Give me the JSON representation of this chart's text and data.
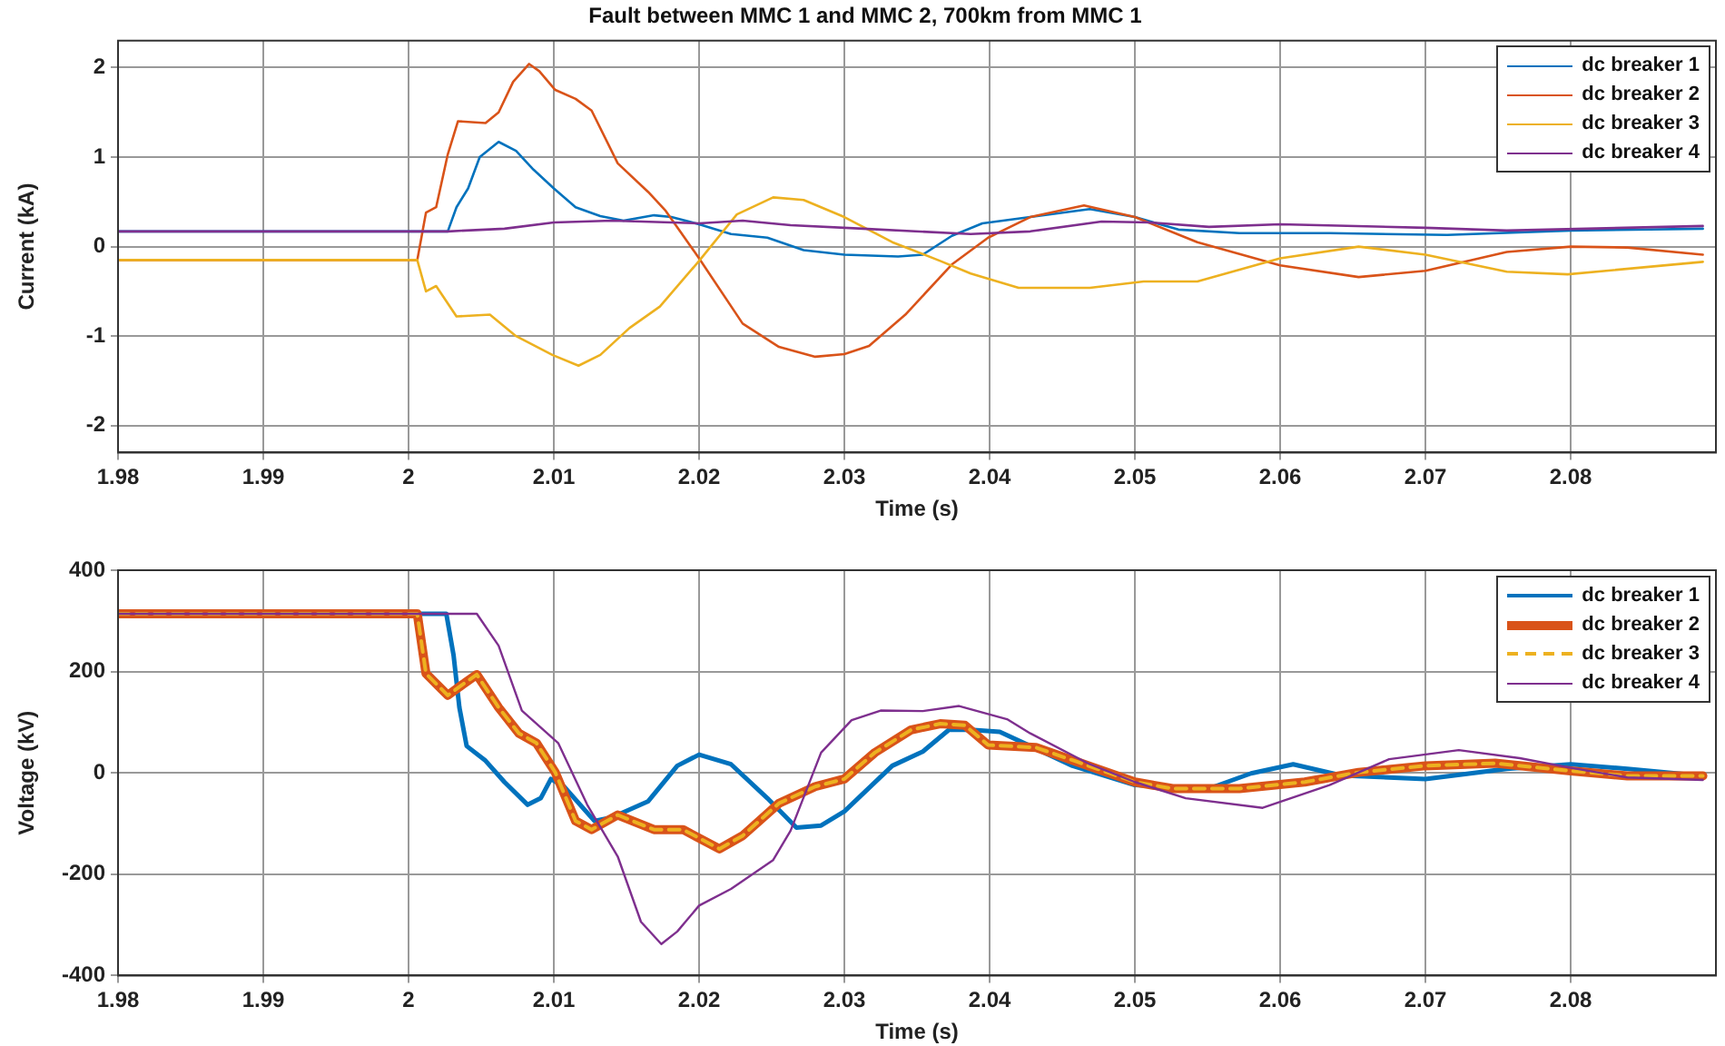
{
  "chart_data": [
    {
      "type": "line",
      "title": "Fault between MMC 1 and MMC 2, 700km from MMC 1",
      "xlabel": "Time (s)",
      "ylabel": "Current (kA)",
      "xlim": [
        1.98,
        2.09
      ],
      "xticks": [
        1.98,
        1.99,
        2,
        2.01,
        2.02,
        2.03,
        2.04,
        2.05,
        2.06,
        2.07,
        2.08
      ],
      "ylim": [
        -2.3,
        2.3
      ],
      "yticks": [
        -2,
        -1,
        0,
        1,
        2
      ],
      "grid": true,
      "legend": "top right",
      "marker": "none",
      "series": [
        {
          "name": "dc breaker 1",
          "color": "#0072bd",
          "x": [
            1.98,
            2.0027,
            2.0033,
            2.0041,
            2.0049,
            2.0062,
            2.0074,
            2.0086,
            2.01,
            2.0115,
            2.0132,
            2.0148,
            2.0169,
            2.0181,
            2.02,
            2.0222,
            2.0247,
            2.0272,
            2.03,
            2.0337,
            2.0354,
            2.0374,
            2.0395,
            2.0428,
            2.0469,
            2.05,
            2.053,
            2.0572,
            2.0634,
            2.0715,
            2.08,
            2.0891
          ],
          "values": [
            0.17,
            0.17,
            0.44,
            0.65,
            1.0,
            1.17,
            1.07,
            0.86,
            0.65,
            0.44,
            0.34,
            0.29,
            0.35,
            0.33,
            0.25,
            0.14,
            0.1,
            -0.04,
            -0.09,
            -0.11,
            -0.09,
            0.12,
            0.26,
            0.33,
            0.42,
            0.33,
            0.19,
            0.15,
            0.15,
            0.13,
            0.18,
            0.2
          ]
        },
        {
          "name": "dc breaker 2",
          "color": "#d95319",
          "x": [
            1.98,
            2.0006,
            2.0012,
            2.0019,
            2.0027,
            2.0034,
            2.0053,
            2.0062,
            2.0072,
            2.0083,
            2.009,
            2.0101,
            2.0115,
            2.0126,
            2.0144,
            2.0165,
            2.0177,
            2.02,
            2.023,
            2.0255,
            2.028,
            2.03,
            2.0317,
            2.0342,
            2.0374,
            2.0399,
            2.0428,
            2.0465,
            2.05,
            2.0543,
            2.06,
            2.0654,
            2.07,
            2.0756,
            2.08,
            2.0839,
            2.0891
          ],
          "values": [
            -0.15,
            -0.15,
            0.38,
            0.44,
            1.03,
            1.4,
            1.38,
            1.5,
            1.84,
            2.04,
            1.96,
            1.75,
            1.65,
            1.52,
            0.93,
            0.61,
            0.4,
            -0.13,
            -0.86,
            -1.12,
            -1.23,
            -1.2,
            -1.11,
            -0.76,
            -0.2,
            0.1,
            0.33,
            0.46,
            0.33,
            0.05,
            -0.21,
            -0.34,
            -0.27,
            -0.06,
            0,
            -0.01,
            -0.09
          ]
        },
        {
          "name": "dc breaker 3",
          "color": "#edb120",
          "x": [
            1.98,
            2.0006,
            2.0012,
            2.0019,
            2.0033,
            2.0056,
            2.0074,
            2.0099,
            2.0117,
            2.0132,
            2.0152,
            2.0173,
            2.02,
            2.0226,
            2.0251,
            2.0272,
            2.03,
            2.0333,
            2.0366,
            2.0387,
            2.042,
            2.0469,
            2.0506,
            2.0543,
            2.06,
            2.0654,
            2.07,
            2.0756,
            2.0798,
            2.0891
          ],
          "values": [
            -0.15,
            -0.15,
            -0.5,
            -0.44,
            -0.78,
            -0.76,
            -1.0,
            -1.21,
            -1.33,
            -1.21,
            -0.91,
            -0.67,
            -0.16,
            0.36,
            0.55,
            0.52,
            0.33,
            0.05,
            -0.16,
            -0.3,
            -0.46,
            -0.46,
            -0.39,
            -0.39,
            -0.13,
            0,
            -0.09,
            -0.28,
            -0.31,
            -0.17
          ]
        },
        {
          "name": "dc breaker 4",
          "color": "#7e2f8e",
          "x": [
            1.98,
            2.0027,
            2.0066,
            2.01,
            2.014,
            2.02,
            2.023,
            2.0263,
            2.0313,
            2.0387,
            2.0428,
            2.0477,
            2.051,
            2.0551,
            2.06,
            2.07,
            2.0756,
            2.0891
          ],
          "values": [
            0.17,
            0.17,
            0.2,
            0.27,
            0.29,
            0.26,
            0.29,
            0.24,
            0.2,
            0.14,
            0.17,
            0.28,
            0.27,
            0.22,
            0.25,
            0.21,
            0.18,
            0.23
          ]
        }
      ]
    },
    {
      "type": "line",
      "xlabel": "Time (s)",
      "ylabel": "Voltage (kV)",
      "xlim": [
        1.98,
        2.09
      ],
      "xticks": [
        1.98,
        1.99,
        2,
        2.01,
        2.02,
        2.03,
        2.04,
        2.05,
        2.06,
        2.07,
        2.08
      ],
      "ylim": [
        -400,
        400
      ],
      "yticks": [
        -400,
        -200,
        0,
        200,
        400
      ],
      "grid": true,
      "legend": "top right",
      "marker": "none",
      "series": [
        {
          "name": "dc breaker 1",
          "color": "#0072bd",
          "x": [
            1.98,
            2.0026,
            2.0031,
            2.0035,
            2.004,
            2.0053,
            2.0066,
            2.0082,
            2.0091,
            2.0098,
            2.0107,
            2.0128,
            2.014,
            2.0165,
            2.0185,
            2.02,
            2.0222,
            2.0247,
            2.0267,
            2.0284,
            2.03,
            2.0333,
            2.0354,
            2.0372,
            2.0387,
            2.0407,
            2.0428,
            2.0457,
            2.05,
            2.0551,
            2.058,
            2.0609,
            2.0642,
            2.07,
            2.0756,
            2.08,
            2.0839,
            2.0891
          ],
          "values": [
            314,
            314,
            232,
            129,
            53,
            24,
            -18,
            -63,
            -50,
            -12,
            -27,
            -95,
            -88,
            -56,
            14,
            36,
            17,
            -50,
            -108,
            -104,
            -76,
            14,
            42,
            85,
            85,
            81,
            53,
            14,
            -24,
            -31,
            -1,
            17,
            -5,
            -12,
            8,
            17,
            8,
            -6
          ]
        },
        {
          "name": "dc breaker 2",
          "color": "#d95319",
          "x": [
            1.98,
            2.0006,
            2.0012,
            2.0027,
            2.0037,
            2.0047,
            2.0062,
            2.0076,
            2.0088,
            2.0101,
            2.0115,
            2.0126,
            2.0144,
            2.0169,
            2.0189,
            2.0214,
            2.023,
            2.0255,
            2.028,
            2.03,
            2.0321,
            2.0346,
            2.0366,
            2.0383,
            2.0399,
            2.0432,
            2.0461,
            2.05,
            2.0526,
            2.0572,
            2.0617,
            2.0654,
            2.07,
            2.0748,
            2.08,
            2.0839,
            2.0891
          ],
          "values": [
            314,
            314,
            196,
            153,
            174,
            194,
            129,
            78,
            59,
            1,
            -95,
            -112,
            -83,
            -112,
            -112,
            -150,
            -124,
            -60,
            -27,
            -12,
            40,
            85,
            97,
            94,
            55,
            50,
            21,
            -18,
            -31,
            -31,
            -18,
            1,
            14,
            19,
            4,
            -6,
            -6
          ]
        },
        {
          "name": "dc breaker 3",
          "color": "#edb120",
          "line_style": "dashed",
          "x": [
            1.98,
            2.0006,
            2.0012,
            2.0027,
            2.0037,
            2.0047,
            2.0062,
            2.0076,
            2.0088,
            2.0101,
            2.0115,
            2.0126,
            2.0144,
            2.0169,
            2.0189,
            2.0214,
            2.023,
            2.0255,
            2.028,
            2.03,
            2.0321,
            2.0346,
            2.0366,
            2.0383,
            2.0399,
            2.0432,
            2.0461,
            2.05,
            2.0526,
            2.0572,
            2.0617,
            2.0654,
            2.07,
            2.0748,
            2.08,
            2.0839,
            2.0891
          ],
          "values": [
            314,
            314,
            196,
            153,
            174,
            194,
            129,
            78,
            59,
            1,
            -95,
            -112,
            -83,
            -112,
            -112,
            -150,
            -124,
            -60,
            -27,
            -12,
            40,
            85,
            97,
            94,
            55,
            50,
            21,
            -18,
            -31,
            -31,
            -18,
            1,
            14,
            19,
            4,
            -6,
            -6
          ]
        },
        {
          "name": "dc breaker 4",
          "color": "#7e2f8e",
          "x": [
            1.98,
            2.0047,
            2.0062,
            2.0078,
            2.0103,
            2.0123,
            2.0144,
            2.016,
            2.0174,
            2.0185,
            2.02,
            2.0222,
            2.0251,
            2.0263,
            2.0284,
            2.0305,
            2.0325,
            2.0354,
            2.0379,
            2.0412,
            2.0428,
            2.0469,
            2.05,
            2.0535,
            2.0588,
            2.0634,
            2.0675,
            2.0723,
            2.0765,
            2.08,
            2.0839,
            2.0891
          ],
          "values": [
            314,
            314,
            251,
            123,
            59,
            -63,
            -165,
            -294,
            -338,
            -313,
            -262,
            -229,
            -172,
            -114,
            40,
            104,
            123,
            122,
            132,
            106,
            78,
            17,
            -18,
            -50,
            -69,
            -24,
            27,
            45,
            29,
            10,
            -9,
            -14
          ]
        }
      ]
    }
  ]
}
